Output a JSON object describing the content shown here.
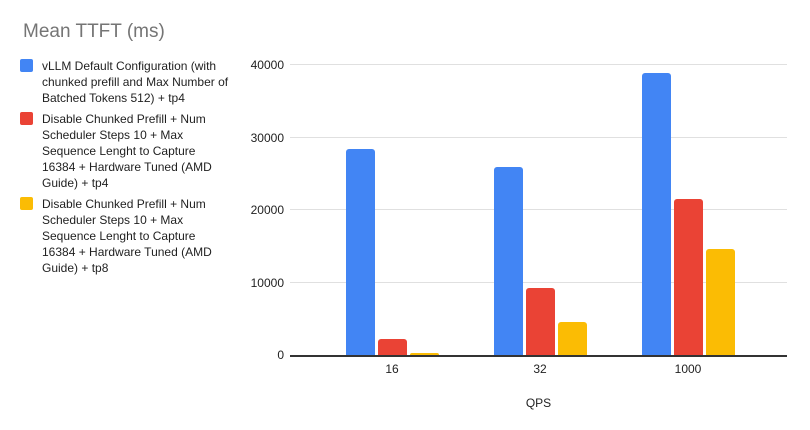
{
  "chart_data": {
    "type": "bar",
    "title": "Mean TTFT (ms)",
    "xlabel": "QPS",
    "ylabel": "",
    "categories": [
      "16",
      "32",
      "1000"
    ],
    "series": [
      {
        "name": "vLLM Default Configuration (with chunked prefill and Max Number of Batched Tokens 512) + tp4",
        "color": "#4285F4",
        "values": [
          28400,
          25900,
          38900
        ]
      },
      {
        "name": "Disable Chunked Prefill + Num Scheduler Steps 10 + Max Sequence Lenght to Capture 16384 + Hardware Tuned (AMD Guide) + tp4",
        "color": "#EA4335",
        "values": [
          2200,
          9300,
          21500
        ]
      },
      {
        "name": "Disable Chunked Prefill + Num Scheduler Steps 10 + Max Sequence Lenght to Capture 16384 + Hardware Tuned (AMD Guide) + tp8",
        "color": "#FBBC04",
        "values": [
          300,
          4600,
          14600
        ]
      }
    ],
    "ylim": [
      0,
      40000
    ],
    "yticks": [
      0,
      10000,
      20000,
      30000,
      40000
    ],
    "grid": true,
    "legend_position": "left"
  }
}
